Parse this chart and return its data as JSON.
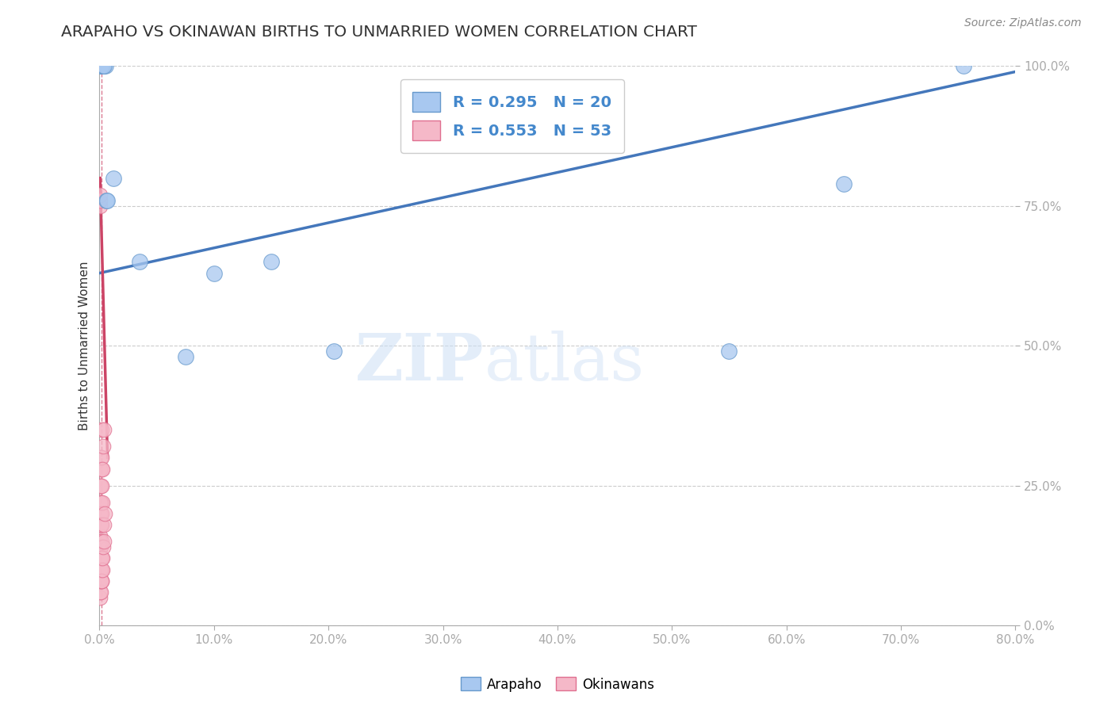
{
  "title": "ARAPAHO VS OKINAWAN BIRTHS TO UNMARRIED WOMEN CORRELATION CHART",
  "ylabel": "Births to Unmarried Women",
  "source_text": "Source: ZipAtlas.com",
  "xlim": [
    0.0,
    80.0
  ],
  "ylim": [
    0.0,
    100.0
  ],
  "xticks": [
    0.0,
    10.0,
    20.0,
    30.0,
    40.0,
    50.0,
    60.0,
    70.0,
    80.0
  ],
  "yticks": [
    0.0,
    25.0,
    50.0,
    75.0,
    100.0
  ],
  "arapaho_color": "#a8c8f0",
  "okinawan_color": "#f5b8c8",
  "arapaho_edge_color": "#6699cc",
  "okinawan_edge_color": "#e07090",
  "arapaho_line_color": "#4477bb",
  "okinawan_line_color": "#cc4466",
  "legend_R_arapaho": "R = 0.295",
  "legend_N_arapaho": "N = 20",
  "legend_R_okinawan": "R = 0.553",
  "legend_N_okinawan": "N = 53",
  "arapaho_line_x0": 0.0,
  "arapaho_line_y0": 63.0,
  "arapaho_line_x1": 80.0,
  "arapaho_line_y1": 99.0,
  "okinawan_line_x0": 0.05,
  "okinawan_line_y0": 80.0,
  "okinawan_line_x1": 0.7,
  "okinawan_line_y1": 30.0,
  "vline_x": 0.18,
  "watermark_zip": "ZIP",
  "watermark_atlas": "atlas",
  "grid_color": "#cccccc",
  "background_color": "#ffffff",
  "title_color": "#333333",
  "tick_label_color": "#4488cc",
  "source_color": "#888888",
  "arapaho_x": [
    0.15,
    0.22,
    0.25,
    0.28,
    0.55,
    10.0,
    20.5,
    55.0,
    65.0,
    75.5,
    1.2,
    3.5,
    7.5,
    15.0,
    0.18,
    0.2,
    0.3,
    0.35,
    0.6,
    0.65
  ],
  "arapaho_y": [
    100.0,
    100.0,
    100.0,
    100.0,
    100.0,
    63.0,
    49.0,
    49.0,
    79.0,
    100.0,
    80.0,
    65.0,
    48.0,
    65.0,
    100.0,
    100.0,
    100.0,
    100.0,
    76.0,
    76.0
  ],
  "okinawan_x": [
    0.05,
    0.05,
    0.05,
    0.05,
    0.05,
    0.05,
    0.06,
    0.06,
    0.06,
    0.06,
    0.07,
    0.07,
    0.07,
    0.08,
    0.08,
    0.09,
    0.09,
    0.1,
    0.1,
    0.1,
    0.11,
    0.11,
    0.12,
    0.12,
    0.13,
    0.13,
    0.14,
    0.14,
    0.15,
    0.15,
    0.16,
    0.16,
    0.17,
    0.17,
    0.18,
    0.18,
    0.19,
    0.19,
    0.2,
    0.2,
    0.22,
    0.22,
    0.25,
    0.25,
    0.3,
    0.3,
    0.35,
    0.35,
    0.4,
    0.45,
    0.05,
    0.06,
    0.07
  ],
  "okinawan_y": [
    5.0,
    8.0,
    12.0,
    16.0,
    20.0,
    25.0,
    6.0,
    10.0,
    14.0,
    22.0,
    8.0,
    15.0,
    28.0,
    10.0,
    18.0,
    12.0,
    22.0,
    8.0,
    14.0,
    20.0,
    10.0,
    25.0,
    6.0,
    18.0,
    8.0,
    22.0,
    10.0,
    30.0,
    12.0,
    35.0,
    15.0,
    28.0,
    8.0,
    20.0,
    10.0,
    25.0,
    12.0,
    30.0,
    8.0,
    18.0,
    10.0,
    22.0,
    12.0,
    28.0,
    14.0,
    32.0,
    15.0,
    35.0,
    18.0,
    20.0,
    75.0,
    76.0,
    77.0
  ]
}
